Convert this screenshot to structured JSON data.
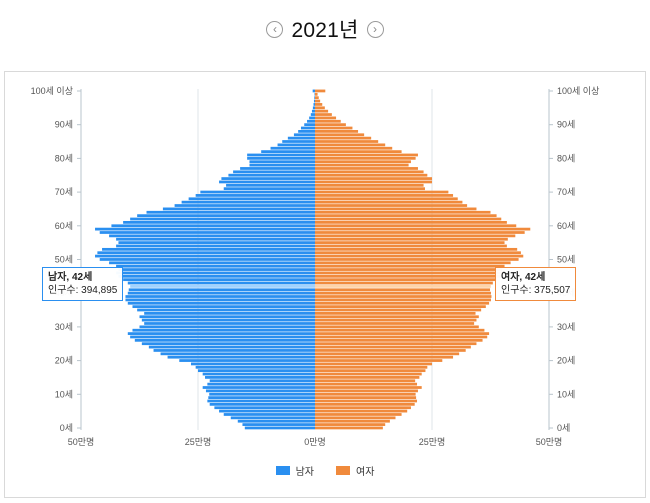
{
  "header": {
    "year_title": "2021년",
    "prev_icon": "chevron-left-icon",
    "next_icon": "chevron-right-icon"
  },
  "colors": {
    "male": "#2a8ff0",
    "female": "#f08a3c",
    "highlight_male": "#9fd1ff",
    "highlight_female": "#ffd2a6"
  },
  "tooltips": {
    "male": {
      "title": "남자, 42세",
      "label": "인구수:",
      "value": "394,895"
    },
    "female": {
      "title": "여자, 42세",
      "label": "인구수:",
      "value": "375,507"
    }
  },
  "legend": {
    "male": "남자",
    "female": "여자"
  },
  "chart_data": {
    "type": "bar",
    "orientation": "horizontal-pyramid",
    "x_unit": "명",
    "x_range": [
      -500000,
      500000
    ],
    "x_ticks": [
      {
        "value": -500000,
        "label": "50만명"
      },
      {
        "value": -250000,
        "label": "25만명"
      },
      {
        "value": 0,
        "label": "0만명"
      },
      {
        "value": 250000,
        "label": "25만명"
      },
      {
        "value": 500000,
        "label": "50만명"
      }
    ],
    "y_range": [
      0,
      100
    ],
    "y_ticks": [
      {
        "value": 0,
        "label": "0세"
      },
      {
        "value": 10,
        "label": "10세"
      },
      {
        "value": 20,
        "label": "20세"
      },
      {
        "value": 30,
        "label": "30세"
      },
      {
        "value": 40,
        "label": "40세"
      },
      {
        "value": 50,
        "label": "50세"
      },
      {
        "value": 60,
        "label": "60세"
      },
      {
        "value": 70,
        "label": "70세"
      },
      {
        "value": 80,
        "label": "80세"
      },
      {
        "value": 90,
        "label": "90세"
      },
      {
        "value": 100,
        "label": "100세 이상"
      }
    ],
    "highlight_age": 42,
    "ages": [
      0,
      1,
      2,
      3,
      4,
      5,
      6,
      7,
      8,
      9,
      10,
      11,
      12,
      13,
      14,
      15,
      16,
      17,
      18,
      19,
      20,
      21,
      22,
      23,
      24,
      25,
      26,
      27,
      28,
      29,
      30,
      31,
      32,
      33,
      34,
      35,
      36,
      37,
      38,
      39,
      40,
      41,
      42,
      43,
      44,
      45,
      46,
      47,
      48,
      49,
      50,
      51,
      52,
      53,
      54,
      55,
      56,
      57,
      58,
      59,
      60,
      61,
      62,
      63,
      64,
      65,
      66,
      67,
      68,
      69,
      70,
      71,
      72,
      73,
      74,
      75,
      76,
      77,
      78,
      79,
      80,
      81,
      82,
      83,
      84,
      85,
      86,
      87,
      88,
      89,
      90,
      91,
      92,
      93,
      94,
      95,
      96,
      97,
      98,
      99,
      100
    ],
    "series": [
      {
        "name": "남자",
        "values": [
          150000,
          155000,
          165000,
          180000,
          195000,
          205000,
          215000,
          225000,
          230000,
          228000,
          226000,
          233000,
          240000,
          230000,
          225000,
          235000,
          240000,
          250000,
          255000,
          265000,
          290000,
          315000,
          330000,
          345000,
          355000,
          370000,
          385000,
          395000,
          400000,
          390000,
          375000,
          365000,
          370000,
          375000,
          365000,
          380000,
          390000,
          400000,
          405000,
          405000,
          400000,
          398000,
          394895,
          400000,
          410000,
          420000,
          425000,
          420000,
          425000,
          440000,
          460000,
          470000,
          465000,
          455000,
          425000,
          420000,
          425000,
          440000,
          460000,
          470000,
          435000,
          410000,
          395000,
          380000,
          360000,
          325000,
          300000,
          285000,
          270000,
          255000,
          245000,
          195000,
          190000,
          205000,
          200000,
          185000,
          175000,
          160000,
          140000,
          140000,
          145000,
          145000,
          115000,
          95000,
          80000,
          70000,
          58000,
          45000,
          36000,
          30000,
          23000,
          17000,
          12500,
          9000,
          6500,
          4500,
          3200,
          2200,
          1500,
          1000,
          5000
        ]
      },
      {
        "name": "여자",
        "values": [
          145000,
          150000,
          160000,
          172000,
          185000,
          197000,
          205000,
          213000,
          218000,
          216000,
          215000,
          220000,
          228000,
          218000,
          214000,
          223000,
          228000,
          236000,
          240000,
          250000,
          272000,
          295000,
          308000,
          322000,
          333000,
          345000,
          358000,
          368000,
          372000,
          362000,
          350000,
          340000,
          345000,
          350000,
          343000,
          355000,
          365000,
          372000,
          376000,
          377000,
          376000,
          374000,
          375507,
          380000,
          388000,
          397000,
          402000,
          400000,
          405000,
          418000,
          435000,
          445000,
          440000,
          432000,
          410000,
          405000,
          412000,
          428000,
          448000,
          460000,
          430000,
          410000,
          398000,
          388000,
          375000,
          345000,
          325000,
          315000,
          305000,
          295000,
          285000,
          235000,
          232000,
          250000,
          250000,
          240000,
          232000,
          220000,
          200000,
          205000,
          215000,
          220000,
          185000,
          165000,
          150000,
          135000,
          120000,
          105000,
          92000,
          80000,
          66000,
          55000,
          45000,
          36000,
          28000,
          21000,
          15500,
          11000,
          8000,
          5500,
          22000
        ]
      }
    ]
  }
}
